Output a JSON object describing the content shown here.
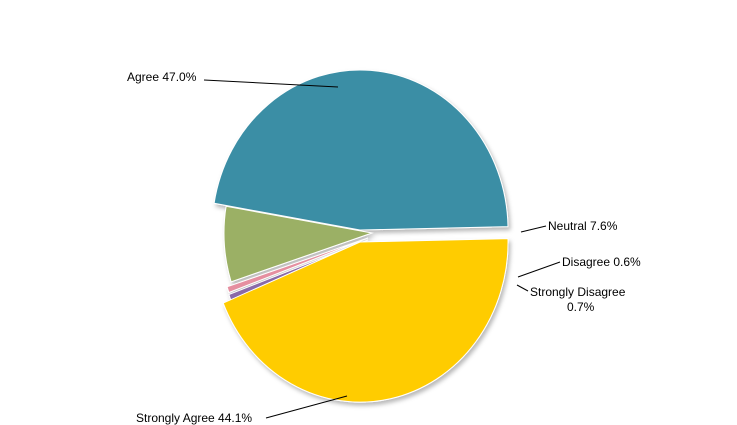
{
  "chart_data": {
    "type": "pie",
    "title": "",
    "slices": [
      {
        "label": "Agree",
        "value": 47.0,
        "display": "Agree 47.0%",
        "color": "#3B8EA5"
      },
      {
        "label": "Neutral",
        "value": 7.6,
        "display": "Neutral  7.6%",
        "color": "#9BB065"
      },
      {
        "label": "Disagree",
        "value": 0.6,
        "display": "Disagree 0.6%",
        "color": "#E58FA0"
      },
      {
        "label": "Strongly Disagree",
        "value": 0.7,
        "display_line1": "Strongly Disagree",
        "display_line2": "0.7%",
        "color": "#8A6AA8"
      },
      {
        "label": "Strongly Agree",
        "value": 44.1,
        "display": "Strongly Agree 44.1%",
        "color": "#FFCC00"
      }
    ],
    "legend": "none",
    "exploded": true
  }
}
